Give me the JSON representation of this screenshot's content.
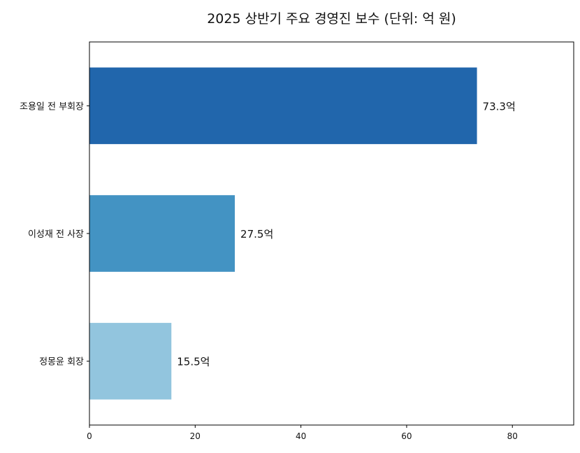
{
  "chart_data": {
    "type": "bar",
    "orientation": "horizontal",
    "title": "2025 상반기 주요 경영진 보수 (단위: 억 원)",
    "categories": [
      "조용일 전 부회장",
      "이성재 전 사장",
      "정몽윤 회장"
    ],
    "values": [
      73.3,
      27.5,
      15.5
    ],
    "data_labels": [
      "73.3억",
      "27.5억",
      "15.5억"
    ],
    "colors": [
      "#2166ac",
      "#4393c3",
      "#92c5de"
    ],
    "xlabel": "",
    "ylabel": "",
    "xlim": [
      0,
      91.6
    ],
    "xticks": [
      0,
      20,
      40,
      60,
      80
    ],
    "grid": false
  }
}
